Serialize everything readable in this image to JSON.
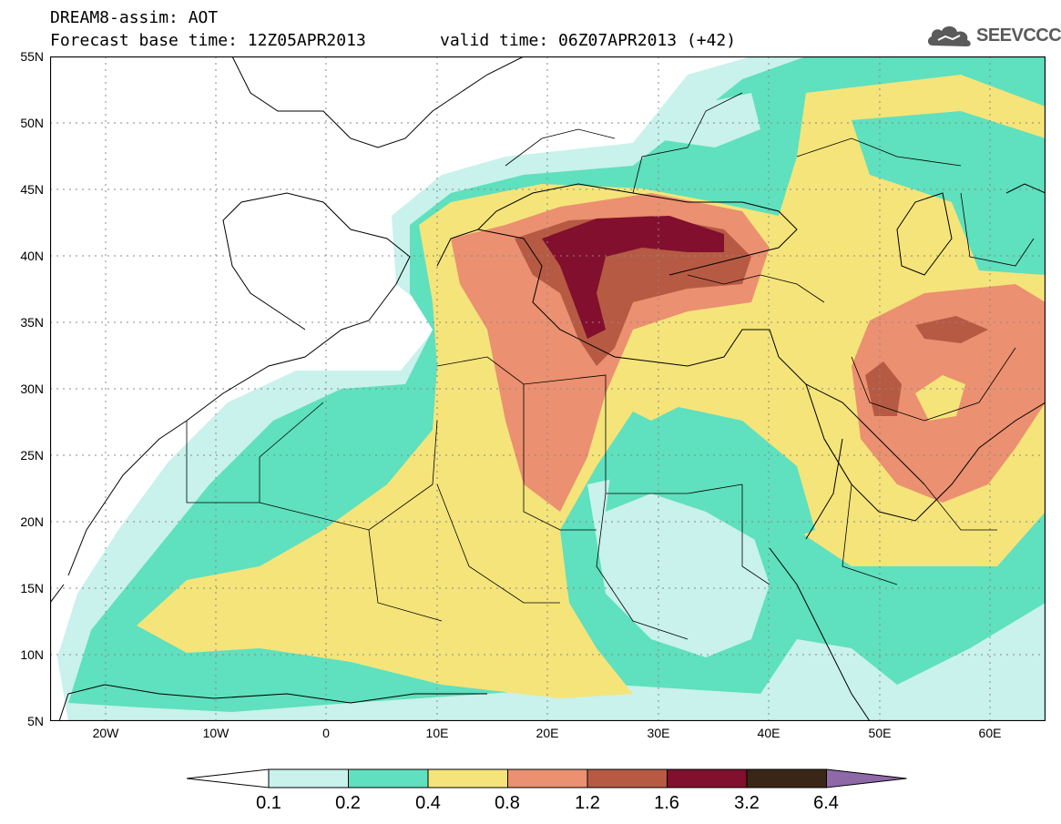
{
  "header": {
    "title_line1": "DREAM8-assim: AOT",
    "title_line2": "Forecast base time: 12Z05APR2013",
    "valid_time": "valid time: 06Z07APR2013 (+42)",
    "logo_text": "SEEVCCC",
    "logo_icon": "cloud-icon"
  },
  "map": {
    "lon_range": [
      -25,
      65
    ],
    "lat_range": [
      5,
      55
    ],
    "y_ticks": [
      "55N",
      "50N",
      "45N",
      "40N",
      "35N",
      "30N",
      "25N",
      "20N",
      "15N",
      "10N",
      "5N"
    ],
    "x_ticks": [
      "20W",
      "10W",
      "0",
      "10E",
      "20E",
      "30E",
      "40E",
      "50E",
      "60E"
    ],
    "grid": true
  },
  "colorbar": {
    "labels": [
      "0.1",
      "0.2",
      "0.4",
      "0.8",
      "1.2",
      "1.6",
      "3.2",
      "6.4"
    ],
    "colors": [
      "#ffffff",
      "#c8f2eb",
      "#5fe0be",
      "#f5e47a",
      "#eb9070",
      "#b75a44",
      "#820f2d",
      "#3a2616",
      "#8f68a8"
    ]
  }
}
